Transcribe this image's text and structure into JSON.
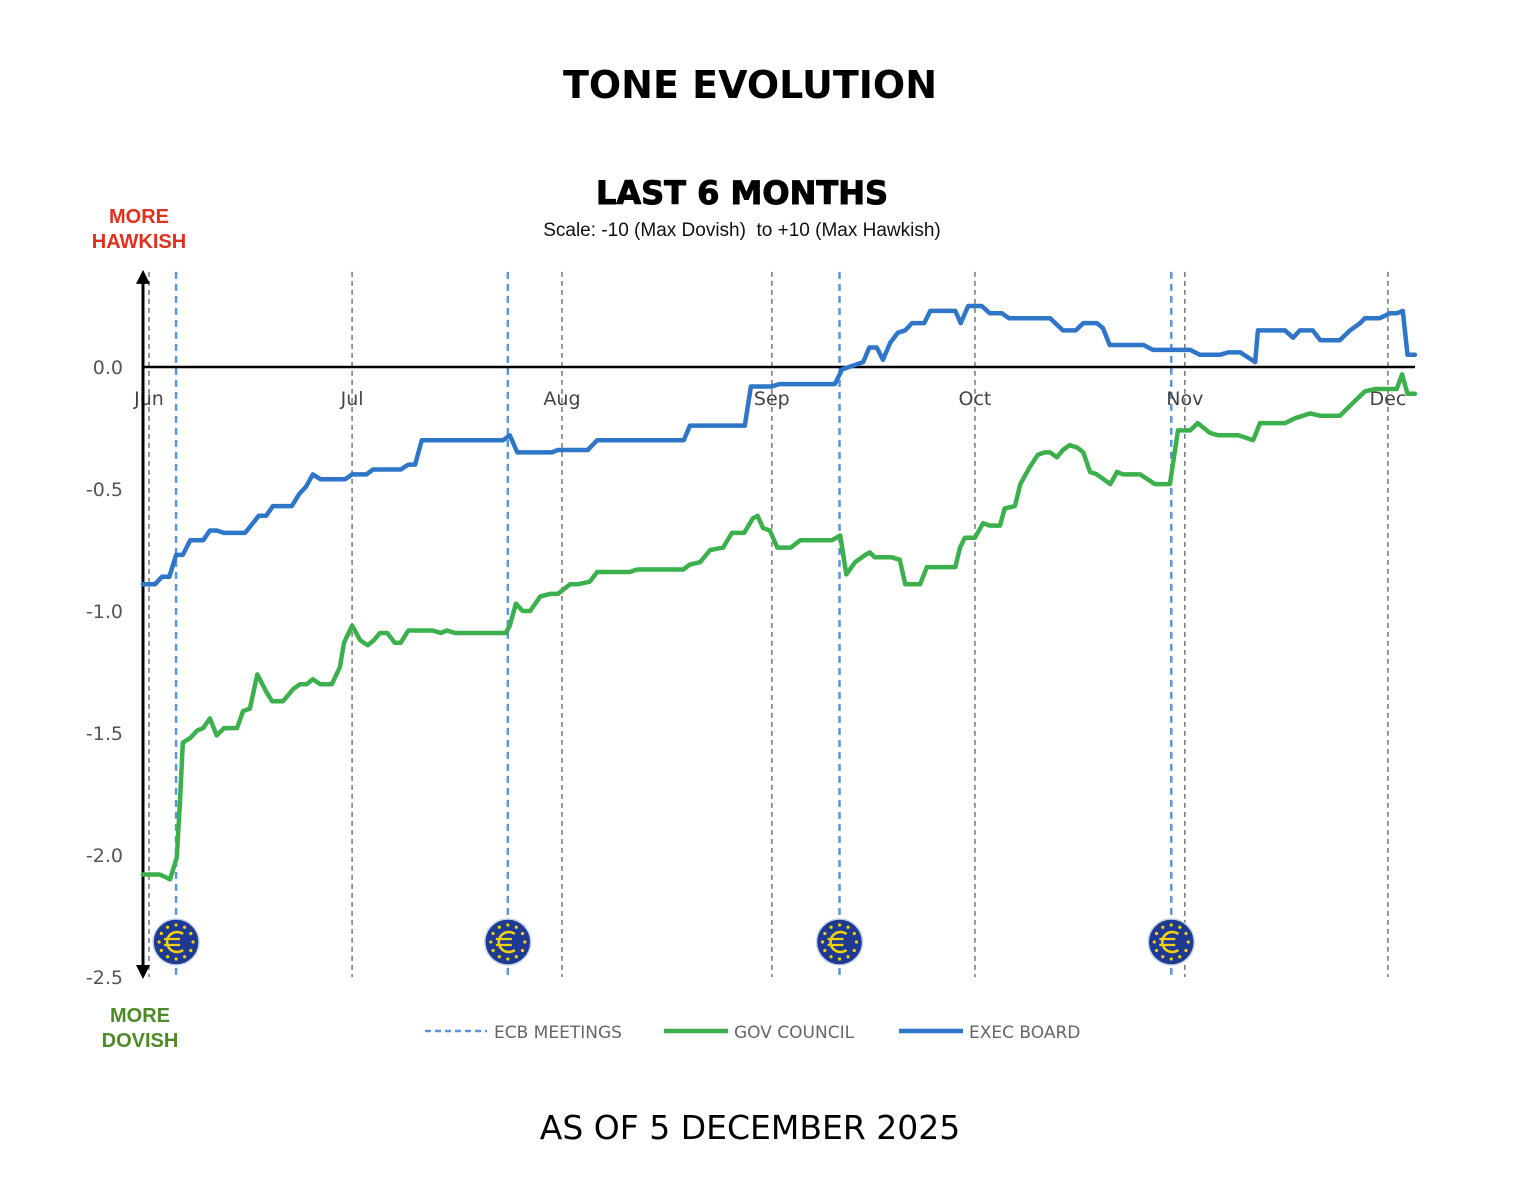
{
  "title": "TONE EVOLUTION",
  "footer": "AS OF 5 DECEMBER 2025",
  "colors": {
    "gov": "#3cb04c",
    "exec": "#2f75c8",
    "ecb": "#5b95dd",
    "hawkish": "#e0301e",
    "dovish": "#4e8a2a",
    "month_line": "#777777"
  },
  "chart_data": {
    "type": "line",
    "title": "LAST 6 MONTHS",
    "subtitle": "Scale: -10 (Max Dovish)  to +10 (Max Hawkish)",
    "ylabel_top": [
      "MORE",
      "HAWKISH"
    ],
    "ylabel_bottom": [
      "MORE",
      "DOVISH"
    ],
    "x_unit": "days since 1 June 2025",
    "xlim": [
      -0.9,
      187
    ],
    "ylim": [
      -2.5,
      0.39
    ],
    "yticks": [
      0.0,
      -0.5,
      -1.0,
      -1.5,
      -2.0,
      -2.5
    ],
    "ytick_labels": [
      "0.0",
      "-0.5",
      "-1.0",
      "-1.5",
      "-2.0",
      "-2.5"
    ],
    "months": [
      {
        "label": "Jun",
        "day": 0
      },
      {
        "label": "Jul",
        "day": 30
      },
      {
        "label": "Aug",
        "day": 61
      },
      {
        "label": "Sep",
        "day": 92
      },
      {
        "label": "Oct",
        "day": 122
      },
      {
        "label": "Nov",
        "day": 153
      },
      {
        "label": "Dec",
        "day": 183
      }
    ],
    "ecb_meetings": [
      4,
      53,
      102,
      151
    ],
    "legend": {
      "placement": "bottom",
      "entries": [
        "ECB MEETINGS",
        "GOV COUNCIL",
        "EXEC BOARD"
      ]
    },
    "series": [
      {
        "name": "GOV COUNCIL",
        "points": [
          [
            -0.9,
            -2.08
          ],
          [
            1.6,
            -2.08
          ],
          [
            2.4,
            -2.09
          ],
          [
            3.1,
            -2.1
          ],
          [
            4.1,
            -2.01
          ],
          [
            4.6,
            -1.77
          ],
          [
            5.0,
            -1.54
          ],
          [
            6.1,
            -1.52
          ],
          [
            7.1,
            -1.49
          ],
          [
            8.0,
            -1.48
          ],
          [
            9.0,
            -1.44
          ],
          [
            10.0,
            -1.51
          ],
          [
            11.1,
            -1.48
          ],
          [
            13.0,
            -1.48
          ],
          [
            13.9,
            -1.41
          ],
          [
            14.9,
            -1.4
          ],
          [
            16.0,
            -1.26
          ],
          [
            17.3,
            -1.33
          ],
          [
            18.2,
            -1.37
          ],
          [
            19.8,
            -1.37
          ],
          [
            21.3,
            -1.32
          ],
          [
            22.3,
            -1.3
          ],
          [
            23.3,
            -1.3
          ],
          [
            24.2,
            -1.28
          ],
          [
            25.3,
            -1.3
          ],
          [
            27.0,
            -1.3
          ],
          [
            28.2,
            -1.23
          ],
          [
            28.8,
            -1.13
          ],
          [
            30.0,
            -1.06
          ],
          [
            31.2,
            -1.12
          ],
          [
            32.3,
            -1.14
          ],
          [
            33.2,
            -1.12
          ],
          [
            34.1,
            -1.09
          ],
          [
            35.2,
            -1.09
          ],
          [
            36.3,
            -1.13
          ],
          [
            37.2,
            -1.13
          ],
          [
            38.3,
            -1.08
          ],
          [
            41.9,
            -1.08
          ],
          [
            43.1,
            -1.09
          ],
          [
            44.0,
            -1.08
          ],
          [
            45.2,
            -1.09
          ],
          [
            52.7,
            -1.09
          ],
          [
            53.3,
            -1.06
          ],
          [
            54.2,
            -0.97
          ],
          [
            55.2,
            -1.0
          ],
          [
            56.3,
            -1.0
          ],
          [
            57.8,
            -0.94
          ],
          [
            59.2,
            -0.93
          ],
          [
            60.4,
            -0.93
          ],
          [
            62.2,
            -0.89
          ],
          [
            63.4,
            -0.89
          ],
          [
            65.1,
            -0.88
          ],
          [
            66.2,
            -0.84
          ],
          [
            71.0,
            -0.84
          ],
          [
            72.1,
            -0.83
          ],
          [
            78.9,
            -0.83
          ],
          [
            79.9,
            -0.81
          ],
          [
            81.4,
            -0.8
          ],
          [
            82.9,
            -0.75
          ],
          [
            84.8,
            -0.74
          ],
          [
            86.1,
            -0.68
          ],
          [
            87.9,
            -0.68
          ],
          [
            89.2,
            -0.62
          ],
          [
            89.9,
            -0.61
          ],
          [
            90.7,
            -0.66
          ],
          [
            91.7,
            -0.67
          ],
          [
            92.8,
            -0.74
          ],
          [
            94.8,
            -0.74
          ],
          [
            96.2,
            -0.71
          ],
          [
            100.9,
            -0.71
          ],
          [
            102.1,
            -0.69
          ],
          [
            103.0,
            -0.85
          ],
          [
            104.3,
            -0.8
          ],
          [
            105.8,
            -0.77
          ],
          [
            106.5,
            -0.76
          ],
          [
            107.2,
            -0.78
          ],
          [
            108.7,
            -0.78
          ],
          [
            109.7,
            -0.78
          ],
          [
            110.9,
            -0.79
          ],
          [
            111.7,
            -0.89
          ],
          [
            113.9,
            -0.89
          ],
          [
            114.9,
            -0.82
          ],
          [
            119.1,
            -0.82
          ],
          [
            119.8,
            -0.74
          ],
          [
            120.5,
            -0.7
          ],
          [
            122.0,
            -0.7
          ],
          [
            123.2,
            -0.64
          ],
          [
            124.2,
            -0.65
          ],
          [
            125.7,
            -0.65
          ],
          [
            126.4,
            -0.58
          ],
          [
            127.9,
            -0.57
          ],
          [
            128.7,
            -0.48
          ],
          [
            130.1,
            -0.41
          ],
          [
            131.3,
            -0.36
          ],
          [
            132.3,
            -0.35
          ],
          [
            133.1,
            -0.35
          ],
          [
            134.1,
            -0.37
          ],
          [
            135.0,
            -0.34
          ],
          [
            136.0,
            -0.32
          ],
          [
            137.1,
            -0.33
          ],
          [
            138.0,
            -0.35
          ],
          [
            139.0,
            -0.43
          ],
          [
            140.0,
            -0.44
          ],
          [
            142.0,
            -0.48
          ],
          [
            143.0,
            -0.43
          ],
          [
            143.9,
            -0.44
          ],
          [
            146.4,
            -0.44
          ],
          [
            148.6,
            -0.48
          ],
          [
            150.8,
            -0.48
          ],
          [
            152.0,
            -0.26
          ],
          [
            153.8,
            -0.26
          ],
          [
            154.9,
            -0.23
          ],
          [
            156.7,
            -0.27
          ],
          [
            157.9,
            -0.28
          ],
          [
            160.9,
            -0.28
          ],
          [
            163.1,
            -0.3
          ],
          [
            164.1,
            -0.23
          ],
          [
            165.3,
            -0.23
          ],
          [
            167.8,
            -0.23
          ],
          [
            169.3,
            -0.21
          ],
          [
            171.5,
            -0.19
          ],
          [
            173.0,
            -0.2
          ],
          [
            175.9,
            -0.2
          ],
          [
            178.1,
            -0.14
          ],
          [
            179.6,
            -0.1
          ],
          [
            181.1,
            -0.09
          ],
          [
            184.3,
            -0.09
          ],
          [
            185.1,
            -0.03
          ],
          [
            185.9,
            -0.11
          ],
          [
            187.0,
            -0.11
          ]
        ]
      },
      {
        "name": "EXEC BOARD",
        "points": [
          [
            -0.9,
            -0.89
          ],
          [
            0.9,
            -0.89
          ],
          [
            1.9,
            -0.86
          ],
          [
            3.0,
            -0.86
          ],
          [
            4.0,
            -0.77
          ],
          [
            5.0,
            -0.77
          ],
          [
            6.1,
            -0.71
          ],
          [
            8.0,
            -0.71
          ],
          [
            9.0,
            -0.67
          ],
          [
            10.0,
            -0.67
          ],
          [
            11.1,
            -0.68
          ],
          [
            14.2,
            -0.68
          ],
          [
            16.2,
            -0.61
          ],
          [
            17.3,
            -0.61
          ],
          [
            18.3,
            -0.57
          ],
          [
            21.1,
            -0.57
          ],
          [
            22.2,
            -0.52
          ],
          [
            23.2,
            -0.49
          ],
          [
            24.2,
            -0.44
          ],
          [
            25.3,
            -0.46
          ],
          [
            29.0,
            -0.46
          ],
          [
            30.0,
            -0.44
          ],
          [
            32.1,
            -0.44
          ],
          [
            33.1,
            -0.42
          ],
          [
            37.2,
            -0.42
          ],
          [
            38.3,
            -0.4
          ],
          [
            39.3,
            -0.4
          ],
          [
            40.3,
            -0.3
          ],
          [
            52.3,
            -0.3
          ],
          [
            53.3,
            -0.28
          ],
          [
            54.4,
            -0.35
          ],
          [
            59.5,
            -0.35
          ],
          [
            60.4,
            -0.34
          ],
          [
            64.8,
            -0.34
          ],
          [
            66.2,
            -0.3
          ],
          [
            79.0,
            -0.3
          ],
          [
            79.9,
            -0.24
          ],
          [
            84.0,
            -0.24
          ],
          [
            88.0,
            -0.24
          ],
          [
            88.9,
            -0.08
          ],
          [
            92.0,
            -0.08
          ],
          [
            93.1,
            -0.07
          ],
          [
            101.3,
            -0.07
          ],
          [
            102.4,
            -0.01
          ],
          [
            103.4,
            0.0
          ],
          [
            104.4,
            0.01
          ],
          [
            105.5,
            0.02
          ],
          [
            106.4,
            0.08
          ],
          [
            107.5,
            0.08
          ],
          [
            108.4,
            0.03
          ],
          [
            109.5,
            0.1
          ],
          [
            110.6,
            0.14
          ],
          [
            111.7,
            0.15
          ],
          [
            112.7,
            0.18
          ],
          [
            114.5,
            0.18
          ],
          [
            115.4,
            0.23
          ],
          [
            119.1,
            0.23
          ],
          [
            119.9,
            0.18
          ],
          [
            121.0,
            0.25
          ],
          [
            123.0,
            0.25
          ],
          [
            124.2,
            0.22
          ],
          [
            126.0,
            0.22
          ],
          [
            127.0,
            0.2
          ],
          [
            133.1,
            0.2
          ],
          [
            135.0,
            0.15
          ],
          [
            136.9,
            0.15
          ],
          [
            138.0,
            0.18
          ],
          [
            140.0,
            0.18
          ],
          [
            140.9,
            0.16
          ],
          [
            141.9,
            0.09
          ],
          [
            143.0,
            0.09
          ],
          [
            146.9,
            0.09
          ],
          [
            148.3,
            0.07
          ],
          [
            149.6,
            0.07
          ],
          [
            150.8,
            0.07
          ],
          [
            153.8,
            0.07
          ],
          [
            155.2,
            0.05
          ],
          [
            157.5,
            0.05
          ],
          [
            158.2,
            0.05
          ],
          [
            159.4,
            0.06
          ],
          [
            161.2,
            0.06
          ],
          [
            163.4,
            0.02
          ],
          [
            163.8,
            0.15
          ],
          [
            167.8,
            0.15
          ],
          [
            169.0,
            0.12
          ],
          [
            170.0,
            0.15
          ],
          [
            171.9,
            0.15
          ],
          [
            173.0,
            0.11
          ],
          [
            175.9,
            0.11
          ],
          [
            177.4,
            0.15
          ],
          [
            178.9,
            0.18
          ],
          [
            179.6,
            0.2
          ],
          [
            181.8,
            0.2
          ],
          [
            183.3,
            0.22
          ],
          [
            184.3,
            0.22
          ],
          [
            185.2,
            0.23
          ],
          [
            185.9,
            0.05
          ],
          [
            187.0,
            0.05
          ]
        ]
      }
    ]
  }
}
